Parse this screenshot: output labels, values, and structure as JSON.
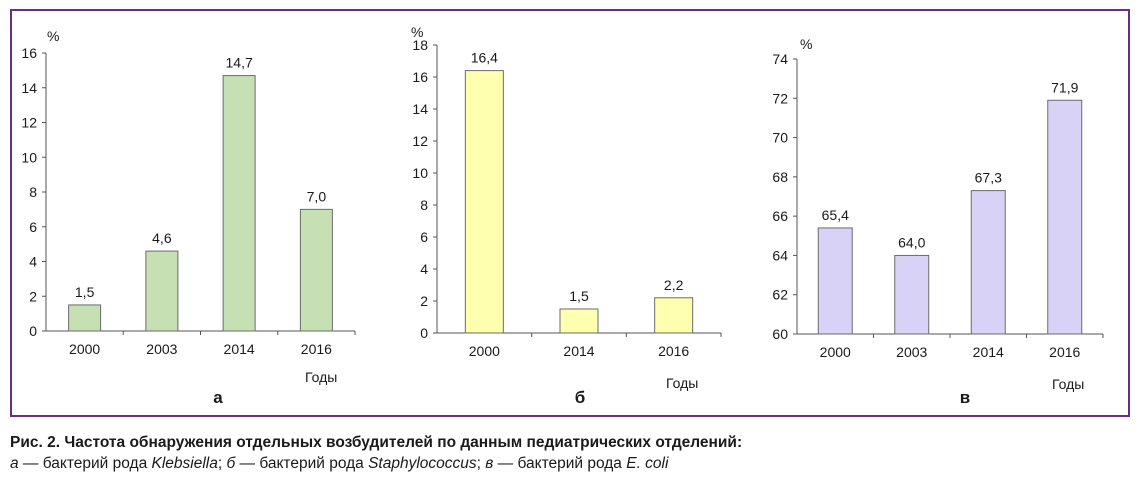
{
  "colors": {
    "frame": "#6a2d8a",
    "axis": "#555555",
    "bar_stroke": "#6b6b6b"
  },
  "caption": {
    "title": "Рис. 2. Частота обнаружения отдельных возбудителей по данным педиатрических отделений:",
    "line2": [
      {
        "text": "а",
        "italic": true
      },
      {
        "text": " — бактерий рода ",
        "italic": false
      },
      {
        "text": "Klebsiella",
        "italic": true
      },
      {
        "text": "; ",
        "italic": false
      },
      {
        "text": "б",
        "italic": true
      },
      {
        "text": " — бактерий рода ",
        "italic": false
      },
      {
        "text": "Staphylococcus",
        "italic": true
      },
      {
        "text": "; ",
        "italic": false
      },
      {
        "text": "в",
        "italic": true
      },
      {
        "text": " — бактерий рода ",
        "italic": false
      },
      {
        "text": "E. coli",
        "italic": true
      }
    ]
  },
  "chart_data": [
    {
      "type": "bar",
      "panel_label": "а",
      "ylabel": "%",
      "xlabel": "Годы",
      "categories": [
        "2000",
        "2003",
        "2014",
        "2016"
      ],
      "values": [
        1.5,
        4.6,
        14.7,
        7.0
      ],
      "value_labels": [
        "1,5",
        "4,6",
        "14,7",
        "7,0"
      ],
      "ylim": [
        0,
        16
      ],
      "yticks": [
        0,
        2,
        4,
        6,
        8,
        10,
        12,
        14,
        16
      ],
      "ytick_labels": [
        "0",
        "2",
        "4",
        "6",
        "8",
        "10",
        "12",
        "14",
        "16"
      ],
      "bar_color": "#c6e0b4",
      "grid": false
    },
    {
      "type": "bar",
      "panel_label": "б",
      "ylabel": "%",
      "xlabel": "Годы",
      "categories": [
        "2000",
        "2014",
        "2016"
      ],
      "values": [
        16.4,
        1.5,
        2.2
      ],
      "value_labels": [
        "16,4",
        "1,5",
        "2,2"
      ],
      "ylim": [
        0,
        18
      ],
      "yticks": [
        0,
        2,
        4,
        6,
        8,
        10,
        12,
        14,
        16,
        18
      ],
      "ytick_labels": [
        "0",
        "2",
        "4",
        "6",
        "8",
        "10",
        "12",
        "14",
        "16",
        "18"
      ],
      "bar_color": "#ffffb0",
      "grid": false
    },
    {
      "type": "bar",
      "panel_label": "в",
      "ylabel": "%",
      "xlabel": "Годы",
      "categories": [
        "2000",
        "2003",
        "2014",
        "2016"
      ],
      "values": [
        65.4,
        64.0,
        67.3,
        71.9
      ],
      "value_labels": [
        "65,4",
        "64,0",
        "67,3",
        "71,9"
      ],
      "ylim": [
        60,
        74
      ],
      "yticks": [
        60,
        62,
        64,
        66,
        68,
        70,
        72,
        74
      ],
      "ytick_labels": [
        "60",
        "62",
        "64",
        "66",
        "68",
        "70",
        "72",
        "74"
      ],
      "bar_color": "#d9d2f7",
      "grid": false
    }
  ]
}
